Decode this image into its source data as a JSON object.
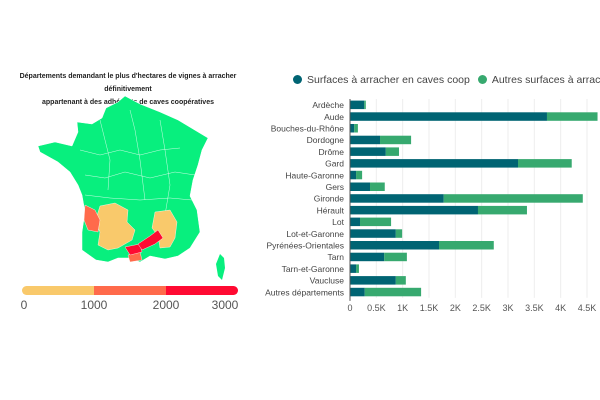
{
  "map": {
    "title_line1": "Départements demandant le plus d'hectares de vignes à arracher définitivement",
    "title_line2": "appartenant à des adhérents de caves coopératives",
    "scale": {
      "labels": [
        "0",
        "1000",
        "2000",
        "3000"
      ],
      "colors": [
        "#f9c96b",
        "#ff6a4b",
        "#ff0a32"
      ],
      "base_color": "#08ef7e"
    }
  },
  "chart_data": {
    "type": "bar",
    "orientation": "horizontal",
    "stacked": true,
    "categories": [
      "Ardèche",
      "Aude",
      "Bouches-du-Rhône",
      "Dordogne",
      "Drôme",
      "Gard",
      "Haute-Garonne",
      "Gers",
      "Gironde",
      "Hérault",
      "Lot",
      "Lot-et-Garonne",
      "Pyrénées-Orientales",
      "Tarn",
      "Tarn-et-Garonne",
      "Vaucluse",
      "Autres départements"
    ],
    "series": [
      {
        "name": "Surfaces à arracher en caves coop",
        "color": "#006473",
        "values": [
          270,
          3740,
          80,
          570,
          680,
          3190,
          115,
          380,
          1780,
          2430,
          190,
          870,
          1690,
          650,
          115,
          870,
          280
        ]
      },
      {
        "name": "Autres surfaces à arracher",
        "color": "#37a96f",
        "values": [
          30,
          960,
          70,
          590,
          250,
          1020,
          115,
          280,
          2640,
          930,
          590,
          120,
          1040,
          430,
          55,
          190,
          1070
        ]
      }
    ],
    "xlim": [
      0,
      4600
    ],
    "xticks": [
      0,
      500,
      1000,
      1500,
      2000,
      2500,
      3000,
      3500,
      4000,
      4500
    ],
    "xtick_labels": [
      "0",
      "0.5K",
      "1K",
      "1.5K",
      "2K",
      "2.5K",
      "3K",
      "3.5K",
      "4K",
      "4.5K"
    ],
    "grid": true,
    "legend_position": "top"
  }
}
